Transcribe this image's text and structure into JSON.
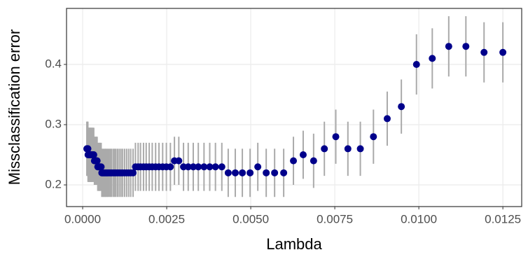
{
  "chart_data": {
    "type": "scatter",
    "x_label": "Lambda",
    "y_label": "Missclassification error",
    "x": [
      0.0125,
      0.01194,
      0.0114,
      0.01089,
      0.0104,
      0.00993,
      0.00948,
      0.00906,
      0.00865,
      0.00826,
      0.00789,
      0.00753,
      0.00719,
      0.00687,
      0.00656,
      0.00627,
      0.00598,
      0.00571,
      0.00546,
      0.00521,
      0.00498,
      0.00475,
      0.00454,
      0.00433,
      0.00414,
      0.00395,
      0.00378,
      0.00361,
      0.00344,
      0.00329,
      0.00314,
      0.003,
      0.00286,
      0.00273,
      0.00261,
      0.00249,
      0.00238,
      0.00227,
      0.00217,
      0.00207,
      0.00198,
      0.00189,
      0.00181,
      0.00172,
      0.00165,
      0.00157,
      0.0015,
      0.00143,
      0.00137,
      0.00131,
      0.00125,
      0.00119,
      0.00114,
      0.00109,
      0.00104,
      0.00099,
      0.00095,
      0.00091,
      0.00086,
      0.00083,
      0.00079,
      0.00075,
      0.00072,
      0.00069,
      0.00066,
      0.00063,
      0.0006,
      0.00057,
      0.00055,
      0.00052,
      0.0005,
      0.00048,
      0.00045,
      0.00043,
      0.00041,
      0.0004,
      0.00038,
      0.00036,
      0.00035,
      0.00033,
      0.00031,
      0.0003,
      0.00029,
      0.00027,
      0.00026,
      0.00025,
      0.00024,
      0.00023,
      0.00022,
      0.00021,
      0.0002,
      0.00019,
      0.00018,
      0.00017,
      0.00016,
      0.000155,
      0.00015,
      0.00014,
      0.00013,
      0.000125
    ],
    "y": [
      0.42,
      0.42,
      0.43,
      0.43,
      0.41,
      0.4,
      0.33,
      0.31,
      0.28,
      0.26,
      0.26,
      0.28,
      0.26,
      0.24,
      0.25,
      0.24,
      0.22,
      0.22,
      0.22,
      0.23,
      0.22,
      0.22,
      0.22,
      0.22,
      0.23,
      0.23,
      0.23,
      0.23,
      0.23,
      0.23,
      0.23,
      0.23,
      0.24,
      0.24,
      0.23,
      0.23,
      0.23,
      0.23,
      0.23,
      0.23,
      0.23,
      0.23,
      0.23,
      0.23,
      0.23,
      0.23,
      0.22,
      0.22,
      0.22,
      0.22,
      0.22,
      0.22,
      0.22,
      0.22,
      0.22,
      0.22,
      0.22,
      0.22,
      0.22,
      0.22,
      0.22,
      0.22,
      0.22,
      0.22,
      0.22,
      0.22,
      0.22,
      0.22,
      0.23,
      0.23,
      0.23,
      0.23,
      0.23,
      0.24,
      0.24,
      0.24,
      0.24,
      0.24,
      0.24,
      0.25,
      0.25,
      0.25,
      0.25,
      0.25,
      0.25,
      0.25,
      0.25,
      0.25,
      0.25,
      0.25,
      0.25,
      0.25,
      0.25,
      0.25,
      0.25,
      0.26,
      0.26,
      0.26,
      0.26,
      0.26
    ],
    "error": [
      0.05,
      0.05,
      0.05,
      0.05,
      0.05,
      0.05,
      0.045,
      0.045,
      0.045,
      0.045,
      0.045,
      0.045,
      0.045,
      0.045,
      0.04,
      0.04,
      0.04,
      0.04,
      0.04,
      0.04,
      0.04,
      0.04,
      0.04,
      0.04,
      0.04,
      0.04,
      0.04,
      0.04,
      0.04,
      0.04,
      0.04,
      0.04,
      0.04,
      0.04,
      0.04,
      0.04,
      0.04,
      0.04,
      0.04,
      0.04,
      0.04,
      0.04,
      0.04,
      0.04,
      0.04,
      0.04,
      0.04,
      0.04,
      0.04,
      0.04,
      0.04,
      0.04,
      0.04,
      0.04,
      0.04,
      0.04,
      0.04,
      0.04,
      0.04,
      0.04,
      0.04,
      0.04,
      0.04,
      0.04,
      0.04,
      0.04,
      0.04,
      0.04,
      0.04,
      0.04,
      0.04,
      0.04,
      0.04,
      0.04,
      0.04,
      0.04,
      0.04,
      0.04,
      0.04,
      0.045,
      0.045,
      0.045,
      0.045,
      0.045,
      0.045,
      0.045,
      0.045,
      0.045,
      0.045,
      0.045,
      0.045,
      0.045,
      0.045,
      0.045,
      0.045,
      0.045,
      0.045,
      0.045,
      0.045,
      0.045
    ],
    "color": "#00008b",
    "error_color": "#aaaaaa",
    "xlim": [
      -0.00048,
      0.01306
    ],
    "ylim": [
      0.164,
      0.493
    ],
    "xticks": [
      {
        "value": 0,
        "label": "0.0000"
      },
      {
        "value": 0.0025,
        "label": "0.0025"
      },
      {
        "value": 0.005,
        "label": "0.0050"
      },
      {
        "value": 0.0075,
        "label": "0.0075"
      },
      {
        "value": 0.01,
        "label": "0.0100"
      },
      {
        "value": 0.0125,
        "label": "0.0125"
      }
    ],
    "yticks": [
      0.2,
      0.3,
      0.4
    ],
    "grid": true
  }
}
